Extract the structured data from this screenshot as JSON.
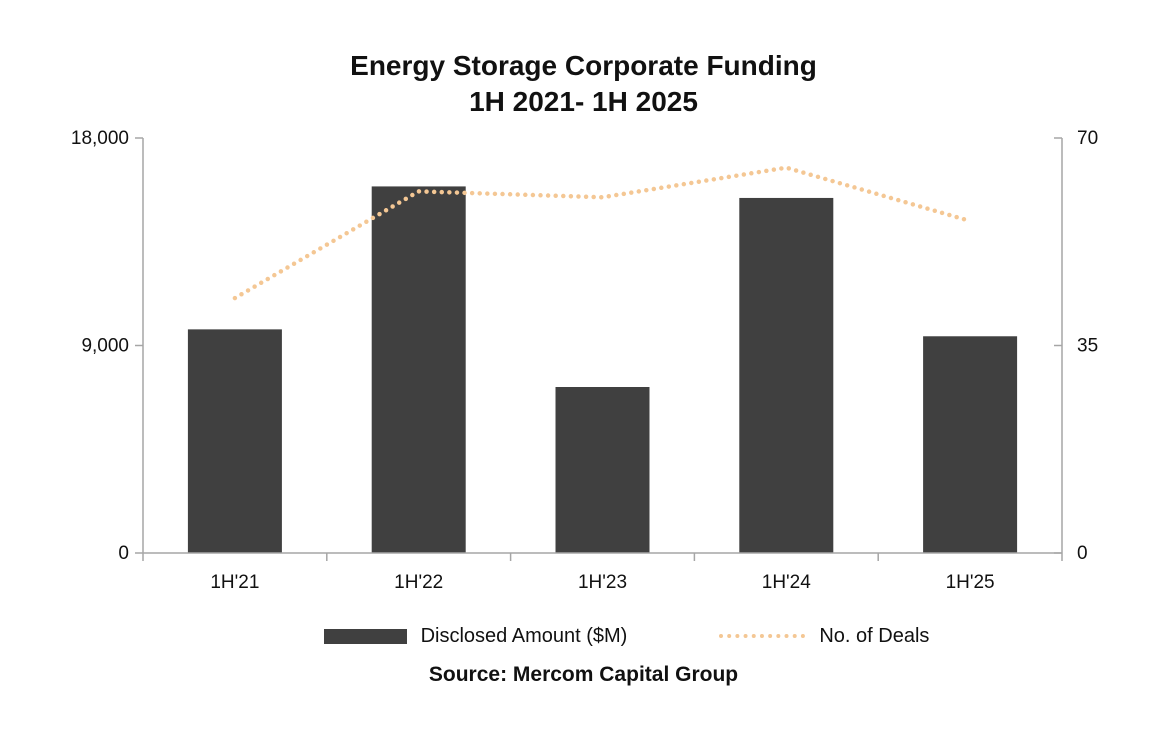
{
  "title": {
    "line1": "Energy Storage Corporate Funding",
    "line2": "1H 2021- 1H 2025"
  },
  "source": "Source: Mercom Capital Group",
  "legend": {
    "bar_label": "Disclosed Amount ($M)",
    "line_label": "No. of Deals"
  },
  "colors": {
    "bar": "#404040",
    "line_dots": "#F4C794",
    "axis": "#A6A6A6",
    "text": "#111111",
    "background": "#FFFFFF"
  },
  "chart_data": {
    "type": "bar",
    "title": "Energy Storage Corporate Funding 1H 2021- 1H 2025",
    "categories": [
      "1H'21",
      "1H'22",
      "1H'23",
      "1H'24",
      "1H'25"
    ],
    "series": [
      {
        "name": "Disclosed Amount ($M)",
        "type": "bar",
        "axis": "left",
        "values": [
          9700,
          15900,
          7200,
          15400,
          9400
        ]
      },
      {
        "name": "No. of Deals",
        "type": "line",
        "style": "dotted",
        "axis": "right",
        "values": [
          43,
          61,
          60,
          65,
          56
        ]
      }
    ],
    "y_left": {
      "min": 0,
      "max": 18000,
      "tick_labels": [
        "0",
        "9,000",
        "18,000"
      ],
      "tick_values": [
        0,
        9000,
        18000
      ]
    },
    "y_right": {
      "min": 0,
      "max": 70,
      "tick_labels": [
        "0",
        "35",
        "70"
      ],
      "tick_values": [
        0,
        35,
        70
      ]
    },
    "grid": false,
    "legend_position": "bottom",
    "xlabel": "",
    "ylabel_left": "",
    "ylabel_right": ""
  }
}
